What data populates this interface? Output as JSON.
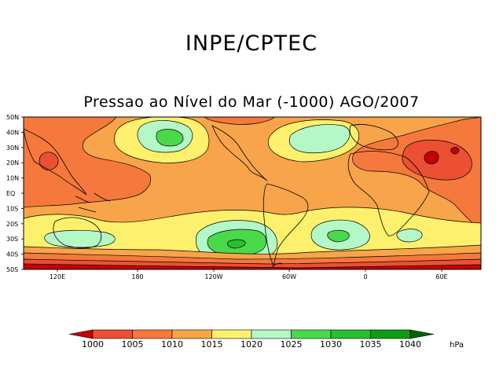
{
  "header": {
    "title": "INPE/CPTEC"
  },
  "map": {
    "title": "Pressao ao Nível do Mar (-1000) AGO/2007",
    "lat_labels": [
      "50N",
      "40N",
      "30N",
      "20N",
      "10N",
      "EQ",
      "10S",
      "20S",
      "30S",
      "40S",
      "50S"
    ],
    "lon_labels": [
      "120E",
      "180",
      "120W",
      "60W",
      "0",
      "60E"
    ]
  },
  "colorbar": {
    "values": [
      "1000",
      "1005",
      "1010",
      "1015",
      "1020",
      "1025",
      "1030",
      "1035",
      "1040"
    ],
    "unit": "hPa",
    "colors": [
      "#c80000",
      "#eb5032",
      "#f5783c",
      "#f8a44a",
      "#fdf06c",
      "#b4f8c8",
      "#4ad94a",
      "#2cbd2c",
      "#109c10",
      "#006400"
    ]
  }
}
